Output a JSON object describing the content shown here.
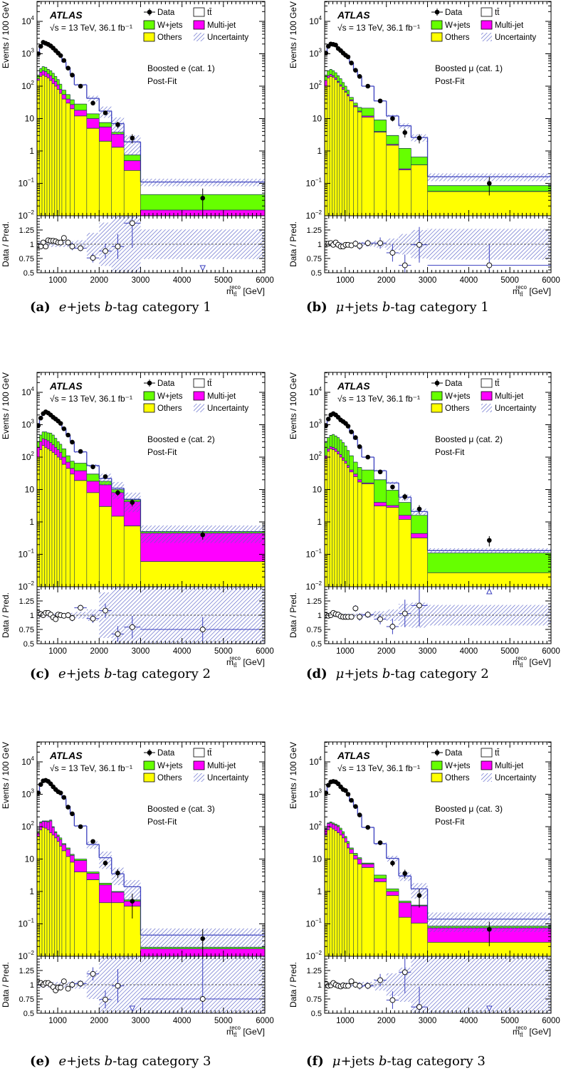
{
  "common": {
    "experiment": "ATLAS",
    "energy_lumi": "√s = 13 TeV, 36.1 fb⁻¹",
    "fit_label": "Post-Fit",
    "ylabel": "Events / 100 GeV",
    "ratio_ylabel": "Data / Pred.",
    "xlabel": {
      "m": "m",
      "sub": "tt̄",
      "sup": "reco",
      "unit": " [GeV]"
    },
    "legend": {
      "data": "Data",
      "ttbar": "tt̄",
      "wjets": "W+jets",
      "multijet": "Multi-jet",
      "others": "Others",
      "uncertainty": "Uncertainty"
    },
    "y_ticks": [
      {
        "v": 0.01,
        "b": "10",
        "e": "−2"
      },
      {
        "v": 0.1,
        "b": "10",
        "e": "−1"
      },
      {
        "v": 1,
        "b": "1",
        "e": ""
      },
      {
        "v": 10,
        "b": "10",
        "e": ""
      },
      {
        "v": 100,
        "b": "10",
        "e": "2"
      },
      {
        "v": 1000,
        "b": "10",
        "e": "3"
      },
      {
        "v": 10000,
        "b": "10",
        "e": "4"
      }
    ],
    "ratio_ticks": [
      {
        "v": 0.5,
        "l": "0.5"
      },
      {
        "v": 0.75,
        "l": "0.75"
      },
      {
        "v": 1,
        "l": "1"
      },
      {
        "v": 1.25,
        "l": "1.25"
      }
    ],
    "x_ticks": [
      {
        "v": 1000,
        "l": "1000"
      },
      {
        "v": 2000,
        "l": "2000"
      },
      {
        "v": 3000,
        "l": "3000"
      },
      {
        "v": 4000,
        "l": "4000"
      },
      {
        "v": 5000,
        "l": "5000"
      },
      {
        "v": 6000,
        "l": "6000"
      }
    ],
    "colors": {
      "ttbar": "#ffffff",
      "wjets": "#66ff00",
      "multijet": "#ff00ff",
      "others": "#ffff00",
      "line": "#3a3fbf",
      "hatch": "#5a63c9"
    }
  },
  "chart_data": [
    {
      "type": "bar",
      "caption": {
        "letter": "(a)",
        "lep": "e",
        "mid": "+jets ",
        "b": "b",
        "tail": "-tag category 1"
      },
      "region": "Boosted e (cat. 1)",
      "xlim": [
        500,
        6000
      ],
      "ylim": [
        0.01,
        40000
      ],
      "ratio_lim": [
        0.5,
        1.5
      ],
      "bin_edges": [
        500,
        560,
        620,
        680,
        740,
        800,
        860,
        920,
        980,
        1040,
        1100,
        1200,
        1300,
        1400,
        1700,
        2000,
        2300,
        2600,
        3000,
        6000
      ],
      "data": [
        1000,
        1700,
        2250,
        2100,
        1950,
        1750,
        1500,
        1250,
        1050,
        880,
        620,
        360,
        220,
        100,
        30,
        15,
        6.5,
        2.5,
        0.035
      ],
      "stack_cumulative": {
        "others": [
          150,
          200,
          220,
          200,
          180,
          150,
          120,
          100,
          80,
          60,
          40,
          30,
          20,
          12,
          5,
          2,
          1.3,
          0.25,
          0.005
        ],
        "multijet": [
          170,
          270,
          300,
          280,
          240,
          210,
          170,
          140,
          110,
          80,
          55,
          40,
          27,
          18,
          10,
          5.5,
          3.3,
          0.5,
          0.015
        ],
        "wjets": [
          220,
          350,
          400,
          380,
          330,
          300,
          250,
          200,
          160,
          115,
          75,
          55,
          38,
          28,
          14,
          7.5,
          3.8,
          0.75,
          0.045
        ],
        "ttbar": [
          1000,
          1750,
          2200,
          2150,
          1850,
          1650,
          1450,
          1220,
          1050,
          870,
          560,
          370,
          230,
          110,
          42,
          17,
          7,
          1.9,
          0.11
        ]
      },
      "uncertainty_frac": [
        0.05,
        0.05,
        0.05,
        0.05,
        0.05,
        0.05,
        0.05,
        0.05,
        0.05,
        0.05,
        0.05,
        0.05,
        0.05,
        0.07,
        0.2,
        0.38,
        0.55,
        0.6,
        0.26
      ],
      "ratio": [
        0.97,
        0.96,
        1.03,
        0.96,
        1.07,
        1.06,
        1.06,
        1.05,
        1.03,
        1.03,
        1.11,
        1.03,
        0.96,
        0.93,
        0.76,
        0.88,
        0.96,
        1.37,
        0.32
      ]
    },
    {
      "type": "bar",
      "caption": {
        "letter": "(b)",
        "lep": "μ",
        "mid": "+jets ",
        "b": "b",
        "tail": "-tag category 1"
      },
      "region": "Boosted μ (cat. 1)",
      "xlim": [
        500,
        6000
      ],
      "ylim": [
        0.01,
        40000
      ],
      "ratio_lim": [
        0.5,
        1.5
      ],
      "bin_edges": [
        500,
        560,
        620,
        680,
        740,
        800,
        860,
        920,
        980,
        1040,
        1100,
        1200,
        1300,
        1400,
        1700,
        2000,
        2300,
        2600,
        3000,
        6000
      ],
      "data": [
        1050,
        1700,
        2000,
        1950,
        1850,
        1450,
        1250,
        1050,
        900,
        800,
        520,
        310,
        200,
        100,
        35,
        10,
        3.7,
        2.5,
        0.1
      ],
      "stack_cumulative": {
        "others": [
          100,
          180,
          200,
          190,
          160,
          130,
          100,
          80,
          65,
          50,
          35,
          23,
          16,
          11,
          3.8,
          1.5,
          0.26,
          0.37,
          0.056
        ],
        "multijet": [
          150,
          210,
          230,
          210,
          180,
          140,
          110,
          90,
          70,
          55,
          38,
          25,
          17,
          12,
          4,
          1.6,
          0.28,
          0.37,
          0.057
        ],
        "wjets": [
          220,
          300,
          330,
          300,
          260,
          210,
          170,
          130,
          100,
          75,
          45,
          30,
          22,
          21,
          9,
          3,
          1.2,
          0.65,
          0.085
        ],
        "ttbar": [
          1040,
          1700,
          2000,
          1950,
          1800,
          1450,
          1250,
          1050,
          900,
          800,
          530,
          310,
          205,
          100,
          35,
          12,
          6,
          2.6,
          0.16
        ]
      },
      "uncertainty_frac": [
        0.03,
        0.03,
        0.03,
        0.03,
        0.03,
        0.03,
        0.03,
        0.03,
        0.03,
        0.03,
        0.03,
        0.03,
        0.03,
        0.04,
        0.06,
        0.1,
        0.18,
        0.25,
        0.27
      ],
      "ratio": [
        1.01,
        1.01,
        1.02,
        0.99,
        1.03,
        0.99,
        0.96,
        0.96,
        0.99,
        0.99,
        0.98,
        1.01,
        0.97,
        1.02,
        1.02,
        0.85,
        0.63,
        0.99,
        0.63
      ]
    },
    {
      "type": "bar",
      "caption": {
        "letter": "(c)",
        "lep": "e",
        "mid": "+jets ",
        "b": "b",
        "tail": "-tag category 2"
      },
      "region": "Boosted e (cat. 2)",
      "xlim": [
        500,
        6000
      ],
      "ylim": [
        0.01,
        40000
      ],
      "ratio_lim": [
        0.5,
        1.5
      ],
      "bin_edges": [
        500,
        560,
        620,
        680,
        740,
        800,
        860,
        920,
        980,
        1040,
        1100,
        1200,
        1300,
        1400,
        1700,
        2000,
        2300,
        2600,
        3000,
        6000
      ],
      "data": [
        950,
        1600,
        2200,
        2500,
        2300,
        2000,
        1700,
        1500,
        1300,
        1100,
        750,
        480,
        290,
        150,
        50,
        25,
        8,
        4,
        0.4
      ],
      "stack_cumulative": {
        "others": [
          100,
          170,
          230,
          200,
          180,
          160,
          140,
          120,
          100,
          85,
          60,
          45,
          30,
          19,
          8,
          3,
          1.5,
          0.75,
          0.06
        ],
        "multijet": [
          200,
          300,
          370,
          350,
          320,
          280,
          240,
          200,
          170,
          140,
          100,
          70,
          45,
          38,
          18,
          14,
          8,
          4.2,
          0.45
        ],
        "wjets": [
          300,
          480,
          600,
          600,
          560,
          550,
          480,
          380,
          300,
          250,
          180,
          110,
          75,
          65,
          30,
          18,
          10,
          4.8,
          0.5
        ],
        "ttbar": [
          920,
          1560,
          2200,
          2400,
          2200,
          1980,
          1780,
          1600,
          1280,
          1100,
          760,
          480,
          300,
          145,
          55,
          22,
          11,
          5,
          0.5
        ]
      },
      "uncertainty_frac": [
        0.04,
        0.04,
        0.04,
        0.04,
        0.04,
        0.04,
        0.04,
        0.04,
        0.04,
        0.04,
        0.04,
        0.04,
        0.04,
        0.06,
        0.1,
        0.4,
        0.55,
        0.6,
        0.55
      ],
      "ratio": [
        1.04,
        1.02,
        1.0,
        1.04,
        1.04,
        1.01,
        0.96,
        0.93,
        1.01,
        1.0,
        0.99,
        1.0,
        0.95,
        1.13,
        0.94,
        1.08,
        0.67,
        0.79,
        0.75
      ]
    },
    {
      "type": "bar",
      "caption": {
        "letter": "(d)",
        "lep": "μ",
        "mid": "+jets ",
        "b": "b",
        "tail": "-tag category 2"
      },
      "region": "Boosted μ (cat. 2)",
      "xlim": [
        500,
        6000
      ],
      "ylim": [
        0.01,
        40000
      ],
      "ratio_lim": [
        0.5,
        1.5
      ],
      "bin_edges": [
        500,
        560,
        620,
        680,
        740,
        800,
        860,
        920,
        980,
        1040,
        1100,
        1200,
        1300,
        1400,
        1700,
        2000,
        2300,
        2600,
        3000,
        6000
      ],
      "data": [
        950,
        1500,
        2000,
        2200,
        2000,
        1700,
        1400,
        1250,
        1100,
        900,
        600,
        400,
        210,
        100,
        35,
        12,
        6,
        2.5,
        0.27
      ],
      "stack_cumulative": {
        "others": [
          90,
          150,
          180,
          170,
          150,
          125,
          100,
          80,
          65,
          48,
          35,
          25,
          17,
          15,
          3.1,
          2.8,
          1.2,
          0.32,
          0.027
        ],
        "multijet": [
          110,
          180,
          210,
          200,
          180,
          150,
          120,
          95,
          75,
          55,
          40,
          30,
          20,
          16,
          4,
          3.2,
          1.6,
          0.44,
          0.027
        ],
        "wjets": [
          280,
          400,
          470,
          500,
          450,
          400,
          340,
          280,
          220,
          160,
          110,
          70,
          48,
          40,
          20,
          9.5,
          4,
          1.6,
          0.11
        ],
        "ttbar": [
          950,
          1500,
          2000,
          2120,
          1980,
          1700,
          1430,
          1290,
          1130,
          930,
          620,
          360,
          215,
          100,
          38,
          16,
          5.8,
          2.1,
          0.13
        ]
      },
      "uncertainty_frac": [
        0.03,
        0.03,
        0.03,
        0.03,
        0.03,
        0.03,
        0.03,
        0.03,
        0.03,
        0.03,
        0.03,
        0.03,
        0.03,
        0.04,
        0.07,
        0.1,
        0.2,
        0.22,
        0.18
      ],
      "ratio": [
        1.0,
        0.99,
        1.0,
        1.04,
        1.02,
        1.01,
        0.98,
        0.97,
        0.97,
        0.97,
        0.97,
        1.12,
        0.97,
        1.01,
        0.93,
        0.8,
        1.03,
        1.17,
        2.1
      ]
    },
    {
      "type": "bar",
      "caption": {
        "letter": "(e)",
        "lep": "e",
        "mid": "+jets ",
        "b": "b",
        "tail": "-tag category 3"
      },
      "region": "Boosted e (cat. 3)",
      "xlim": [
        500,
        6000
      ],
      "ylim": [
        0.01,
        40000
      ],
      "ratio_lim": [
        0.5,
        1.5
      ],
      "bin_edges": [
        500,
        560,
        620,
        680,
        740,
        800,
        860,
        920,
        980,
        1040,
        1100,
        1200,
        1300,
        1400,
        1700,
        2000,
        2300,
        2600,
        3000,
        6000
      ],
      "data": [
        1100,
        2000,
        2600,
        2700,
        2500,
        2100,
        1700,
        1400,
        1200,
        1100,
        800,
        400,
        250,
        100,
        35,
        7.5,
        3.7,
        0.5,
        0.035
      ],
      "stack_cumulative": {
        "others": [
          50,
          80,
          95,
          90,
          80,
          65,
          55,
          45,
          35,
          25,
          18,
          12,
          8,
          4,
          2.3,
          0.45,
          0.45,
          0.35,
          0.005
        ],
        "multijet": [
          65,
          130,
          145,
          145,
          140,
          150,
          95,
          65,
          50,
          40,
          28,
          20,
          13,
          9,
          3.6,
          1.6,
          0.95,
          0.5,
          0.017
        ],
        "wjets": [
          70,
          140,
          150,
          150,
          150,
          160,
          100,
          70,
          55,
          45,
          30,
          22,
          14,
          10,
          4,
          1.8,
          1.0,
          0.55,
          0.019
        ],
        "ttbar": [
          1060,
          1940,
          2600,
          2620,
          2430,
          2100,
          1770,
          1550,
          1260,
          1160,
          750,
          430,
          250,
          105,
          28,
          11,
          3.5,
          1.4,
          0.045
        ]
      },
      "uncertainty_frac": [
        0.05,
        0.05,
        0.05,
        0.05,
        0.05,
        0.05,
        0.05,
        0.05,
        0.05,
        0.05,
        0.05,
        0.05,
        0.05,
        0.07,
        0.25,
        0.55,
        0.55,
        0.6,
        0.6
      ],
      "ratio": [
        1.04,
        1.03,
        1.0,
        1.03,
        1.03,
        1.0,
        0.96,
        0.9,
        0.95,
        0.95,
        1.06,
        0.93,
        1.0,
        1.02,
        1.19,
        0.74,
        0.98,
        0.36,
        0.75
      ]
    },
    {
      "type": "bar",
      "caption": {
        "letter": "(f)",
        "lep": "μ",
        "mid": "+jets ",
        "b": "b",
        "tail": "-tag category 3"
      },
      "region": "Boosted μ (cat. 3)",
      "xlim": [
        500,
        6000
      ],
      "ylim": [
        0.01,
        40000
      ],
      "ratio_lim": [
        0.5,
        1.5
      ],
      "bin_edges": [
        500,
        560,
        620,
        680,
        740,
        800,
        860,
        920,
        980,
        1040,
        1100,
        1200,
        1300,
        1400,
        1700,
        2000,
        2300,
        2600,
        3000,
        6000
      ],
      "data": [
        1100,
        1900,
        2400,
        2500,
        2400,
        2100,
        1700,
        1400,
        1300,
        1000,
        650,
        420,
        230,
        95,
        32,
        7.5,
        3.6,
        0.75,
        0.068
      ],
      "stack_cumulative": {
        "others": [
          55,
          80,
          95,
          85,
          75,
          65,
          55,
          45,
          33,
          22,
          15,
          10,
          7,
          5.5,
          2,
          0.75,
          0.16,
          0.105,
          0.027
        ],
        "multijet": [
          85,
          125,
          130,
          120,
          110,
          100,
          80,
          60,
          45,
          30,
          20,
          13,
          10,
          7,
          2.5,
          1.0,
          0.45,
          0.36,
          0.075
        ],
        "wjets": [
          90,
          130,
          140,
          130,
          120,
          110,
          90,
          70,
          50,
          35,
          22,
          15,
          11,
          7.5,
          3.2,
          1.2,
          0.5,
          0.38,
          0.085
        ],
        "ttbar": [
          1080,
          1940,
          2420,
          2430,
          2400,
          2140,
          1750,
          1410,
          1330,
          1020,
          610,
          420,
          235,
          95,
          30,
          10.5,
          3,
          1.2,
          0.14
        ]
      },
      "uncertainty_frac": [
        0.04,
        0.04,
        0.04,
        0.04,
        0.04,
        0.04,
        0.04,
        0.04,
        0.04,
        0.04,
        0.04,
        0.04,
        0.04,
        0.05,
        0.1,
        0.2,
        0.3,
        0.5,
        0.6
      ],
      "ratio": [
        1.02,
        0.98,
        0.99,
        1.03,
        1.0,
        0.98,
        0.97,
        0.99,
        0.98,
        0.98,
        1.06,
        1.0,
        0.98,
        0.98,
        1.08,
        0.73,
        1.22,
        0.61,
        0.48
      ]
    }
  ]
}
